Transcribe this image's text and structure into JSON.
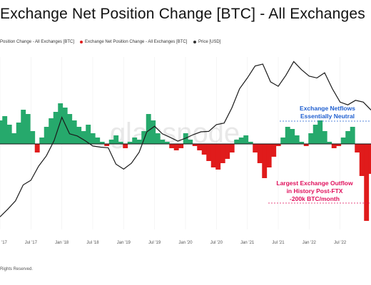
{
  "title": "Exchange Net Position Change [BTC] - All Exchanges",
  "legend": [
    {
      "label": "Position Change - All Exchanges [BTC]",
      "color": "#26a96c"
    },
    {
      "label": "Exchange Net Position Change - All Exchanges [BTC]",
      "color": "#e01b1b"
    },
    {
      "label": "Price [USD]",
      "color": "#333333"
    }
  ],
  "footer": "Rights Reserved.",
  "watermark": "glassnode",
  "colors": {
    "positive": "#26a96c",
    "negative": "#e01b1b",
    "price": "#1a1a1a",
    "blue": "#1f5fd0",
    "pink": "#e0105c"
  },
  "chart_data": {
    "type": "area",
    "x_ticks": [
      "'17",
      "Jul '17",
      "Jan '18",
      "Jul '18",
      "Jan '19",
      "Jul '19",
      "Jan '20",
      "Jul '20",
      "Jan '21",
      "Jul '21",
      "Jan '22",
      "Jul '22"
    ],
    "annotations": [
      {
        "text": [
          "Exchange Netflows",
          "Essentially Neutral"
        ],
        "color": "#1f5fd0"
      },
      {
        "text": [
          "Largest Exchange Outflow",
          "in History Post-FTX",
          "-200k BTC/month"
        ],
        "color": "#e0105c"
      }
    ],
    "series": [
      {
        "kind": "net_position_change",
        "x": [
          0.0,
          0.15,
          0.3,
          0.45,
          0.6,
          0.75,
          0.9,
          1.05,
          1.2,
          1.35,
          1.5,
          1.65,
          1.8,
          1.95,
          2.1,
          2.25,
          2.4,
          2.55,
          2.7,
          2.85,
          3.0,
          3.15,
          3.3,
          3.45,
          3.6,
          3.75,
          3.9,
          4.05,
          4.2,
          4.35,
          4.5,
          4.65,
          4.8,
          4.95,
          5.1,
          5.25,
          5.4,
          5.55,
          5.7,
          5.85,
          6.0,
          6.15,
          6.3,
          6.45,
          6.6,
          6.75,
          6.9,
          7.05,
          7.2,
          7.35,
          7.5,
          7.65,
          7.8,
          7.95,
          8.1,
          8.25,
          8.4,
          8.55,
          8.7,
          8.85,
          9.0,
          9.15,
          9.3,
          9.45,
          9.6,
          9.75,
          9.9,
          10.05,
          10.2,
          10.35,
          10.5,
          10.65,
          10.8,
          10.95,
          11.1,
          11.25,
          11.4,
          11.55,
          11.7,
          11.85,
          12.0
        ],
        "values": [
          55,
          65,
          45,
          25,
          50,
          80,
          70,
          30,
          -20,
          15,
          40,
          60,
          75,
          95,
          85,
          70,
          55,
          40,
          30,
          45,
          25,
          15,
          5,
          -5,
          10,
          20,
          5,
          -10,
          5,
          15,
          10,
          30,
          70,
          55,
          25,
          10,
          5,
          -10,
          -15,
          -10,
          25,
          10,
          -5,
          -15,
          -25,
          -40,
          -55,
          -60,
          -45,
          -35,
          -20,
          10,
          15,
          20,
          5,
          -20,
          -45,
          -80,
          -55,
          -30,
          -5,
          15,
          40,
          35,
          20,
          5,
          -5,
          25,
          45,
          55,
          30,
          5,
          -10,
          -5,
          15,
          30,
          40,
          -20,
          -75,
          -180,
          -70
        ]
      },
      {
        "kind": "price",
        "x": [
          0.0,
          0.25,
          0.5,
          0.75,
          1.0,
          1.25,
          1.5,
          1.75,
          2.0,
          2.25,
          2.5,
          2.75,
          3.0,
          3.25,
          3.5,
          3.75,
          4.0,
          4.25,
          4.5,
          4.75,
          5.0,
          5.25,
          5.5,
          5.75,
          6.0,
          6.25,
          6.5,
          6.75,
          7.0,
          7.25,
          7.5,
          7.75,
          8.0,
          8.25,
          8.5,
          8.75,
          9.0,
          9.25,
          9.5,
          9.75,
          10.0,
          10.25,
          10.5,
          10.75,
          11.0,
          11.25,
          11.5,
          11.75,
          12.0
        ],
        "values": [
          980,
          1200,
          1500,
          2300,
          2600,
          3800,
          5000,
          7500,
          14000,
          9000,
          8500,
          7500,
          6500,
          6300,
          6200,
          4000,
          3500,
          4100,
          5500,
          9500,
          11000,
          9000,
          8200,
          7400,
          8000,
          8800,
          9500,
          9600,
          11500,
          12000,
          18000,
          30000,
          40000,
          55000,
          58000,
          36000,
          32000,
          43000,
          62000,
          50000,
          42000,
          40000,
          46000,
          30000,
          21000,
          19500,
          22000,
          21000,
          17000
        ]
      }
    ]
  }
}
